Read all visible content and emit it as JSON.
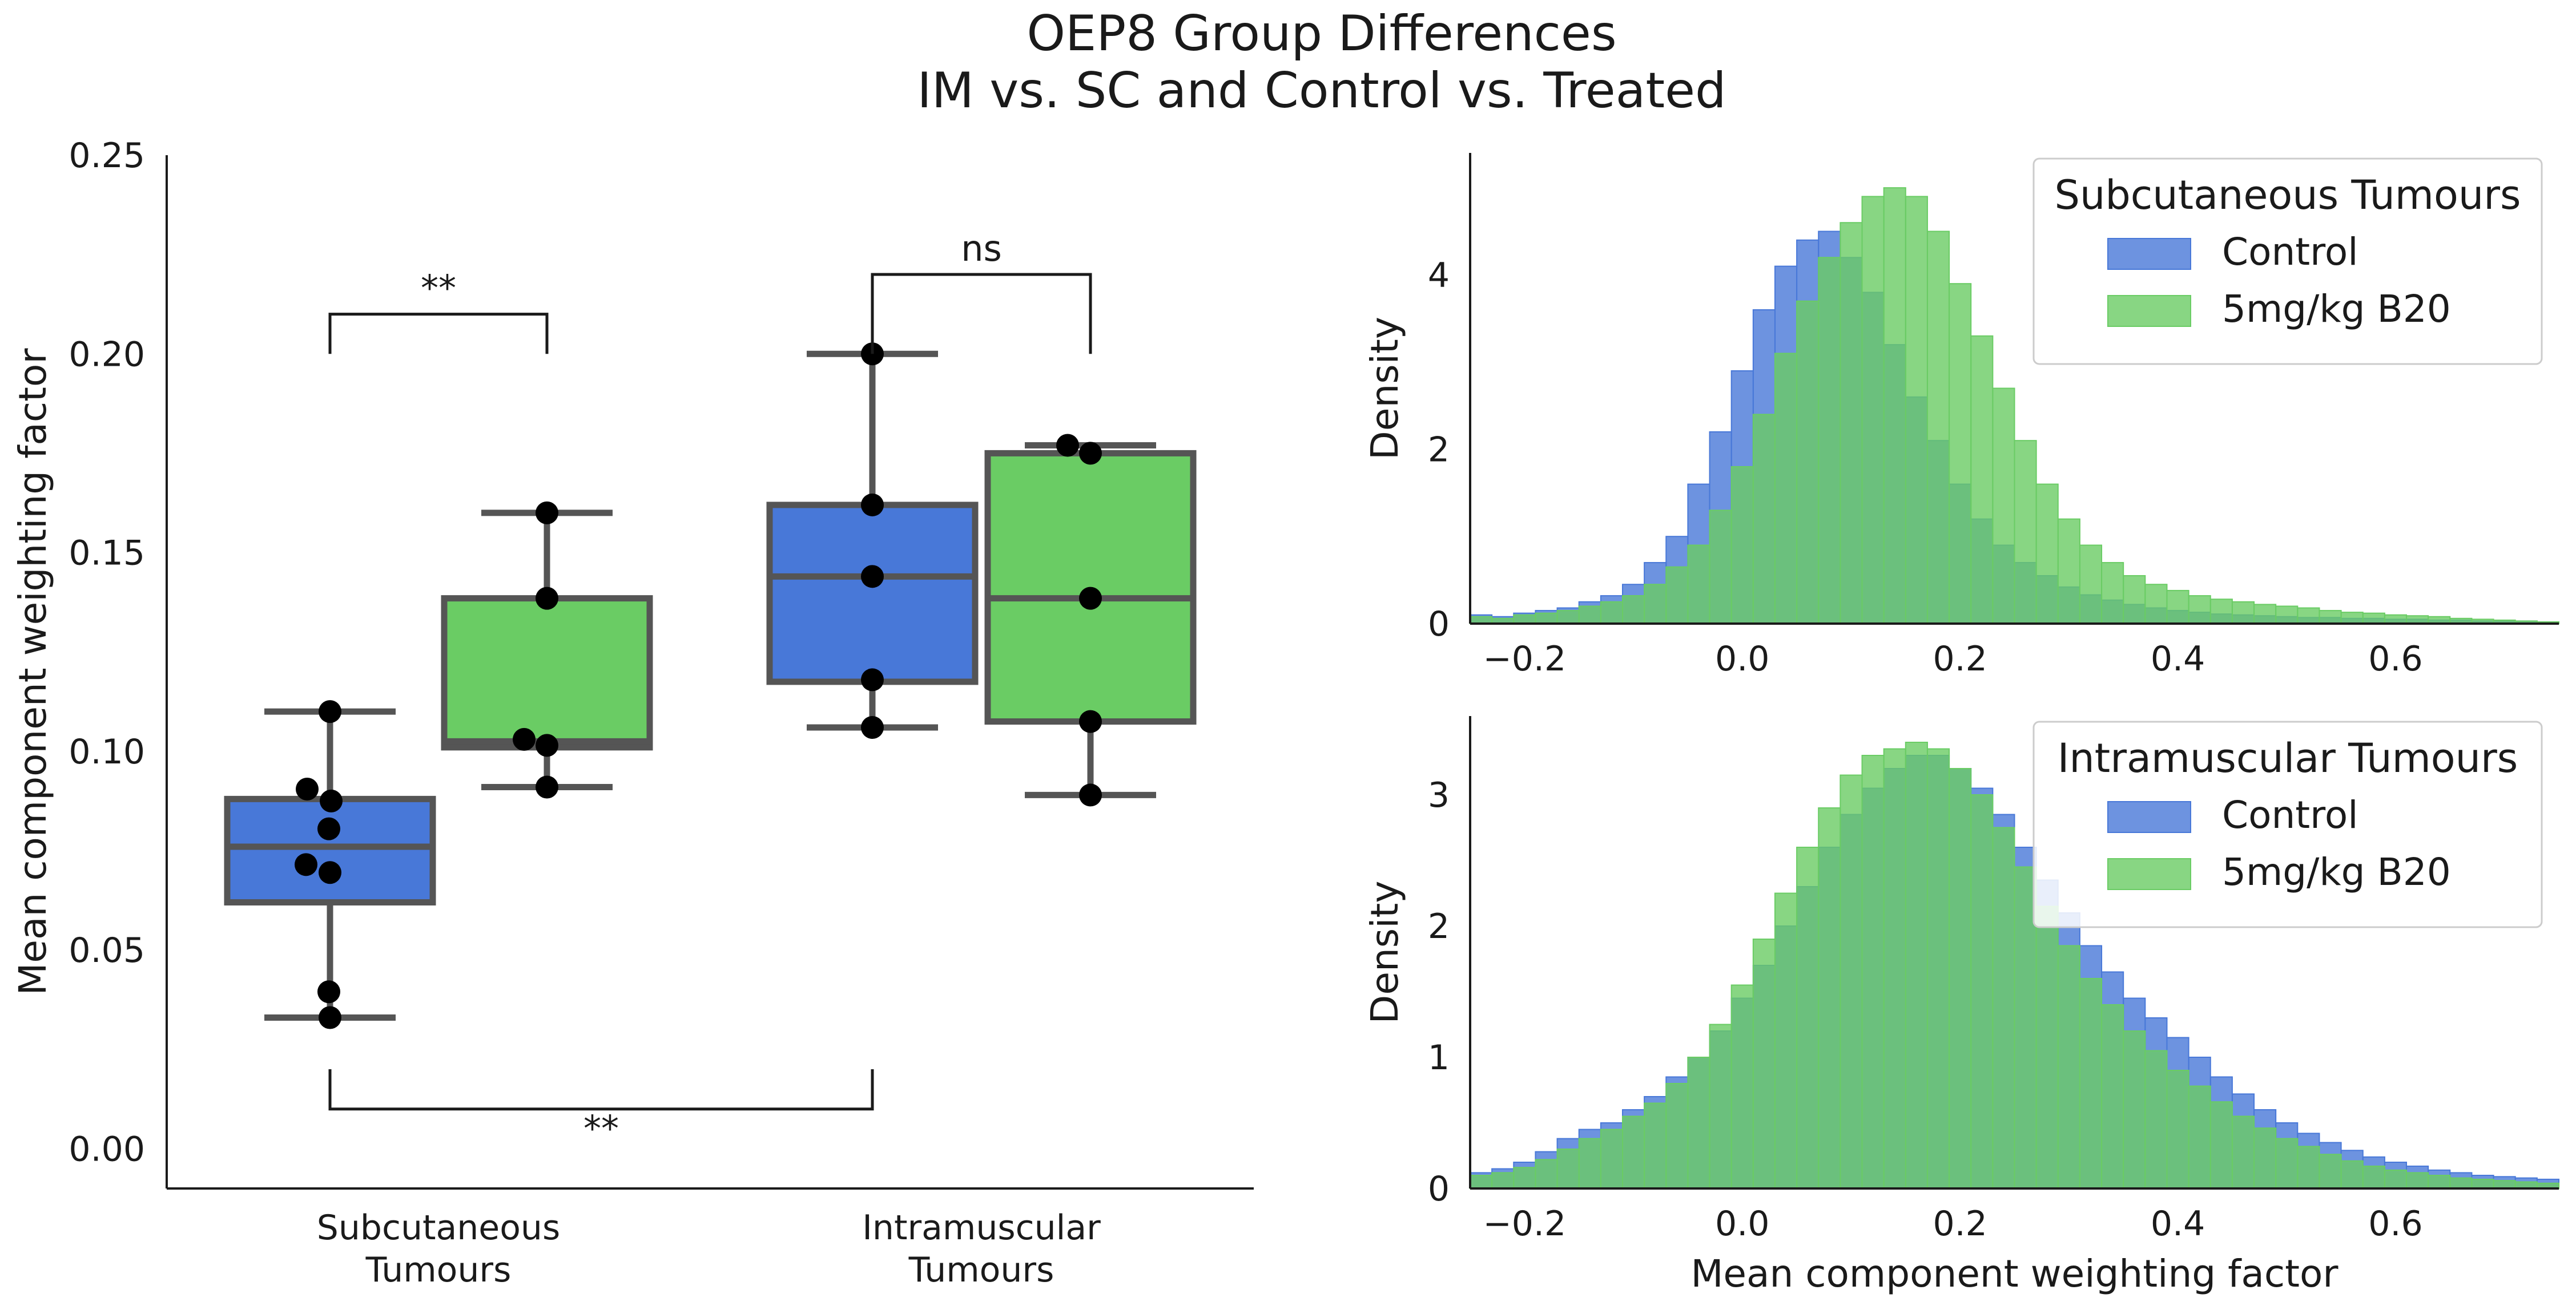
{
  "title_line1": "OEP8 Group Differences",
  "title_line2": "IM vs. SC and Control vs. Treated",
  "colors": {
    "control": "#4878d8",
    "treated": "#6acc64",
    "box_edge": "#555555",
    "point": "#000000",
    "axis": "#1a1a1a"
  },
  "chart_data": [
    {
      "type": "box",
      "ylabel": "Mean component weighting factor",
      "ylim": [
        -0.01,
        0.25
      ],
      "yticks": [
        0.0,
        0.05,
        0.1,
        0.15,
        0.2,
        0.25
      ],
      "ytick_labels": [
        "0.00",
        "0.05",
        "0.10",
        "0.15",
        "0.20",
        "0.25"
      ],
      "categories": [
        {
          "line1": "Subcutaneous",
          "line2": "Tumours"
        },
        {
          "line1": "Intramuscular",
          "line2": "Tumours"
        }
      ],
      "groups": [
        {
          "category": 0,
          "group": "control",
          "whisker_low": 0.033,
          "q1": 0.062,
          "median": 0.076,
          "q3": 0.088,
          "whisker_high": 0.11,
          "points": [
            0.11,
            0.0905,
            0.0875,
            0.0805,
            0.0715,
            0.0695,
            0.0395,
            0.033
          ]
        },
        {
          "category": 0,
          "group": "treated",
          "whisker_low": 0.091,
          "q1": 0.101,
          "median": 0.1025,
          "q3": 0.1385,
          "whisker_high": 0.16,
          "points": [
            0.16,
            0.1385,
            0.103,
            0.1015,
            0.091
          ]
        },
        {
          "category": 1,
          "group": "control",
          "whisker_low": 0.106,
          "q1": 0.1175,
          "median": 0.144,
          "q3": 0.162,
          "whisker_high": 0.2,
          "points": [
            0.2,
            0.162,
            0.144,
            0.118,
            0.106
          ]
        },
        {
          "category": 1,
          "group": "treated",
          "whisker_low": 0.089,
          "q1": 0.1075,
          "median": 0.1385,
          "q3": 0.175,
          "whisker_high": 0.177,
          "points": [
            0.177,
            0.175,
            0.1385,
            0.1075,
            0.089
          ]
        }
      ],
      "annotations": [
        {
          "label": "**",
          "from_group": 0,
          "to_group": 1,
          "y_base": 0.2,
          "y_top": 0.21,
          "label_side": "above"
        },
        {
          "label": "ns",
          "from_group": 2,
          "to_group": 3,
          "y_base": 0.2,
          "y_top": 0.22,
          "label_side": "above"
        },
        {
          "label": "**",
          "from_group": 0,
          "to_group": 2,
          "y_base": 0.02,
          "y_top": 0.01,
          "label_side": "below"
        }
      ]
    },
    {
      "type": "histogram",
      "ylabel": "Density",
      "xlim": [
        -0.25,
        0.75
      ],
      "ylim": [
        0,
        5.4
      ],
      "xticks": [
        -0.2,
        0.0,
        0.2,
        0.4,
        0.6
      ],
      "xtick_labels": [
        "−0.2",
        "0.0",
        "0.2",
        "0.4",
        "0.6"
      ],
      "yticks": [
        0,
        2,
        4
      ],
      "ytick_labels": [
        "0",
        "2",
        "4"
      ],
      "bin_start": -0.25,
      "bin_width": 0.02,
      "legend_title": "Subcutaneous Tumours",
      "legend_position": "upper right",
      "series": [
        {
          "name": "Control",
          "color_key": "control",
          "densities": [
            0.1,
            0.08,
            0.12,
            0.15,
            0.18,
            0.25,
            0.32,
            0.45,
            0.7,
            1.0,
            1.6,
            2.2,
            2.9,
            3.6,
            4.1,
            4.4,
            4.5,
            4.2,
            3.8,
            3.2,
            2.6,
            2.1,
            1.6,
            1.2,
            0.9,
            0.7,
            0.55,
            0.42,
            0.33,
            0.27,
            0.22,
            0.18,
            0.15,
            0.13,
            0.11,
            0.1,
            0.09,
            0.08,
            0.07,
            0.07,
            0.06,
            0.06,
            0.05,
            0.05,
            0.04,
            0.04,
            0.03,
            0.03,
            0.03,
            0.02
          ]
        },
        {
          "name": "5mg/kg B20",
          "color_key": "treated",
          "densities": [
            0.08,
            0.06,
            0.1,
            0.12,
            0.15,
            0.2,
            0.25,
            0.32,
            0.45,
            0.65,
            0.9,
            1.3,
            1.8,
            2.4,
            3.1,
            3.7,
            4.2,
            4.6,
            4.9,
            5.0,
            4.9,
            4.5,
            3.9,
            3.3,
            2.7,
            2.1,
            1.6,
            1.2,
            0.9,
            0.7,
            0.55,
            0.45,
            0.38,
            0.32,
            0.28,
            0.25,
            0.22,
            0.2,
            0.18,
            0.15,
            0.13,
            0.12,
            0.1,
            0.09,
            0.08,
            0.06,
            0.05,
            0.04,
            0.03,
            0.02
          ]
        }
      ]
    },
    {
      "type": "histogram",
      "ylabel": "Density",
      "xlabel": "Mean component weighting factor",
      "xlim": [
        -0.25,
        0.75
      ],
      "ylim": [
        0,
        3.6
      ],
      "xticks": [
        -0.2,
        0.0,
        0.2,
        0.4,
        0.6
      ],
      "xtick_labels": [
        "−0.2",
        "0.0",
        "0.2",
        "0.4",
        "0.6"
      ],
      "yticks": [
        0,
        1,
        2,
        3
      ],
      "ytick_labels": [
        "0",
        "1",
        "2",
        "3"
      ],
      "bin_start": -0.25,
      "bin_width": 0.02,
      "legend_title": "Intramuscular Tumours",
      "legend_position": "upper right",
      "series": [
        {
          "name": "Control",
          "color_key": "control",
          "densities": [
            0.12,
            0.15,
            0.2,
            0.28,
            0.38,
            0.45,
            0.5,
            0.6,
            0.7,
            0.85,
            1.0,
            1.2,
            1.45,
            1.7,
            2.0,
            2.3,
            2.6,
            2.85,
            3.05,
            3.2,
            3.3,
            3.3,
            3.2,
            3.05,
            2.85,
            2.6,
            2.35,
            2.1,
            1.85,
            1.65,
            1.45,
            1.3,
            1.15,
            1.0,
            0.85,
            0.72,
            0.6,
            0.5,
            0.42,
            0.35,
            0.29,
            0.24,
            0.2,
            0.17,
            0.14,
            0.12,
            0.1,
            0.09,
            0.08,
            0.07
          ]
        },
        {
          "name": "5mg/kg B20",
          "color_key": "treated",
          "densities": [
            0.1,
            0.12,
            0.16,
            0.22,
            0.3,
            0.38,
            0.45,
            0.55,
            0.65,
            0.8,
            1.0,
            1.25,
            1.55,
            1.9,
            2.25,
            2.6,
            2.9,
            3.15,
            3.3,
            3.35,
            3.4,
            3.35,
            3.2,
            3.0,
            2.75,
            2.45,
            2.15,
            1.85,
            1.6,
            1.4,
            1.2,
            1.05,
            0.9,
            0.78,
            0.66,
            0.55,
            0.46,
            0.38,
            0.32,
            0.26,
            0.21,
            0.17,
            0.14,
            0.12,
            0.1,
            0.08,
            0.07,
            0.06,
            0.05,
            0.04
          ]
        }
      ]
    }
  ]
}
